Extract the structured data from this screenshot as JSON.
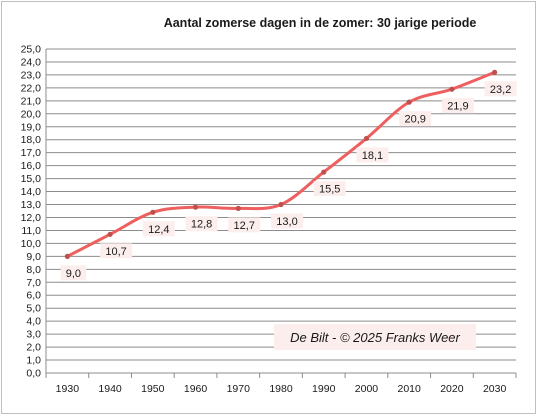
{
  "chart_data": {
    "type": "line",
    "title": "Aantal zomerse dagen in de zomer:  30 jarige periode",
    "xlabel": "",
    "ylabel": "",
    "categories": [
      "1930",
      "1940",
      "1950",
      "1960",
      "1970",
      "1980",
      "1990",
      "2000",
      "2010",
      "2020",
      "2030"
    ],
    "series": [
      {
        "values": [
          9.0,
          10.7,
          12.4,
          12.8,
          12.7,
          13.0,
          15.5,
          18.1,
          20.9,
          21.9,
          23.2
        ],
        "labels": [
          "9,0",
          "10,7",
          "12,4",
          "12,8",
          "12,7",
          "13,0",
          "15,5",
          "18,1",
          "20,9",
          "21,9",
          "23,2"
        ]
      }
    ],
    "ylim": [
      0,
      25
    ],
    "ystep": 1,
    "ytick_labels": [
      "0,0",
      "1,0",
      "2,0",
      "3,0",
      "4,0",
      "5,0",
      "6,0",
      "7,0",
      "8,0",
      "9,0",
      "10,0",
      "11,0",
      "12,0",
      "13,0",
      "14,0",
      "15,0",
      "16,0",
      "17,0",
      "18,0",
      "19,0",
      "20,0",
      "21,0",
      "22,0",
      "23,0",
      "24,0",
      "25,0"
    ],
    "grid": true,
    "line_color": "#ee5f5f",
    "marker_color": "#c0504d",
    "label_bg_color": "#fdeeee",
    "annotation": "De Bilt - © 2025 Franks Weer"
  }
}
